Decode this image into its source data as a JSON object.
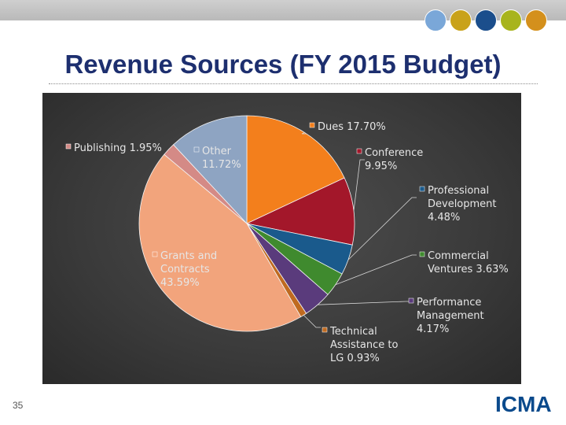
{
  "slide": {
    "title": "Revenue Sources (FY 2015 Budget)",
    "page_number": "35",
    "logo_text": "ICMA",
    "header_dot_colors": [
      "#7aa7d8",
      "#c9a21a",
      "#1b4e8c",
      "#a8b41c",
      "#d4901c"
    ]
  },
  "chart_data": {
    "type": "pie",
    "title": "",
    "slices": [
      {
        "name": "Dues",
        "value": 17.7,
        "label_lines": [
          "Dues 17.70%"
        ],
        "color": "#f37f1c"
      },
      {
        "name": "Conference",
        "value": 9.95,
        "label_lines": [
          "Conference",
          "9.95%"
        ],
        "color": "#a3172a"
      },
      {
        "name": "Professional Development",
        "value": 4.48,
        "label_lines": [
          "Professional",
          "Development",
          "4.48%"
        ],
        "color": "#1a5a8c"
      },
      {
        "name": "Commercial Ventures",
        "value": 3.63,
        "label_lines": [
          "Commercial",
          "Ventures 3.63%"
        ],
        "color": "#3f8a2e"
      },
      {
        "name": "Performance Management",
        "value": 4.17,
        "label_lines": [
          "Performance",
          "Management",
          "4.17%"
        ],
        "color": "#5a3b7c"
      },
      {
        "name": "Technical Assistance to LG",
        "value": 0.93,
        "label_lines": [
          "Technical",
          "Assistance to",
          "LG 0.93%"
        ],
        "color": "#c06a20"
      },
      {
        "name": "Grants and Contracts",
        "value": 43.59,
        "label_lines": [
          "Grants and",
          "Contracts",
          "43.59%"
        ],
        "color": "#f2a47c"
      },
      {
        "name": "Publishing",
        "value": 1.95,
        "label_lines": [
          "Publishing 1.95%"
        ],
        "color": "#d48a86"
      },
      {
        "name": "Other",
        "value": 11.72,
        "label_lines": [
          "Other",
          "11.72%"
        ],
        "color": "#8ea4c2"
      }
    ]
  }
}
